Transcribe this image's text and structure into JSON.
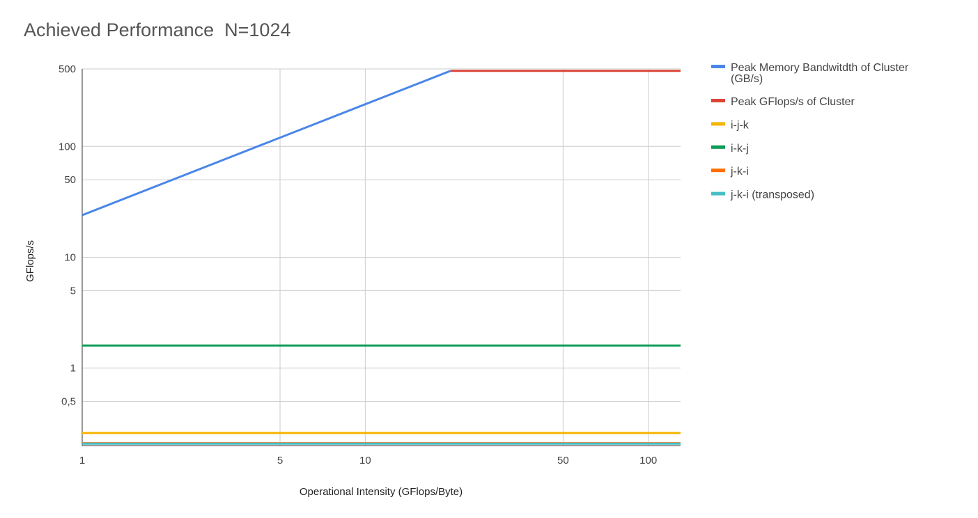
{
  "chart_data": {
    "type": "line",
    "title": "Achieved Performance  N=1024",
    "xlabel": "Operational Intensity (GFlops/Byte)",
    "ylabel": "GFlops/s",
    "xscale": "log",
    "yscale": "log",
    "xlim": [
      1,
      130
    ],
    "ylim": [
      0.2,
      500
    ],
    "grid": true,
    "legend_position": "right",
    "x_ticks": [
      {
        "value": 1,
        "label": "1"
      },
      {
        "value": 5,
        "label": "5"
      },
      {
        "value": 10,
        "label": "10"
      },
      {
        "value": 50,
        "label": "50"
      },
      {
        "value": 100,
        "label": "100"
      }
    ],
    "y_ticks": [
      {
        "value": 0.5,
        "label": "0,5"
      },
      {
        "value": 1,
        "label": "1"
      },
      {
        "value": 5,
        "label": "5"
      },
      {
        "value": 10,
        "label": "10"
      },
      {
        "value": 50,
        "label": "50"
      },
      {
        "value": 100,
        "label": "100"
      },
      {
        "value": 500,
        "label": "500"
      }
    ],
    "series": [
      {
        "name": "Peak Memory Bandwitdth of Cluster (GB/s)",
        "name_lines": [
          "Peak Memory Bandwitdth of Cluster",
          "(GB/s)"
        ],
        "color": "#4a86e8",
        "x": [
          1,
          20
        ],
        "y": [
          24,
          480
        ]
      },
      {
        "name": "Peak GFlops/s of Cluster",
        "name_lines": [
          "Peak GFlops/s of Cluster"
        ],
        "color": "#db4437",
        "x": [
          20,
          130
        ],
        "y": [
          480,
          480
        ]
      },
      {
        "name": "i-j-k",
        "name_lines": [
          "i-j-k"
        ],
        "color": "#f4b400",
        "x": [
          1,
          130
        ],
        "y": [
          0.26,
          0.26
        ]
      },
      {
        "name": "i-k-j",
        "name_lines": [
          "i-k-j"
        ],
        "color": "#0f9d58",
        "x": [
          1,
          130
        ],
        "y": [
          1.6,
          1.6
        ]
      },
      {
        "name": "j-k-i",
        "name_lines": [
          "j-k-i"
        ],
        "color": "#ff6d01",
        "x": [
          1,
          130
        ],
        "y": [
          0.21,
          0.21
        ]
      },
      {
        "name": "j-k-i (transposed)",
        "name_lines": [
          "j-k-i (transposed)"
        ],
        "color": "#46bdc6",
        "x": [
          1,
          130
        ],
        "y": [
          0.208,
          0.208
        ]
      }
    ]
  }
}
